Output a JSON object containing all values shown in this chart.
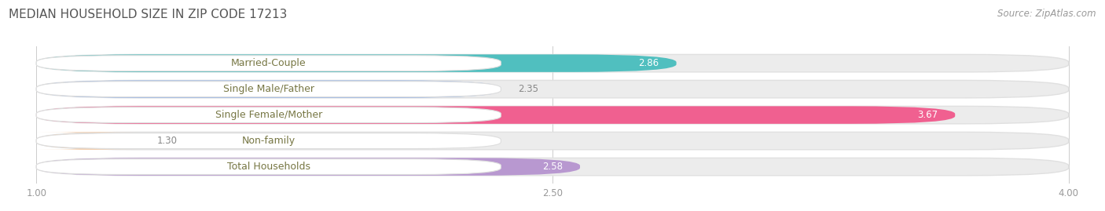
{
  "title": "MEDIAN HOUSEHOLD SIZE IN ZIP CODE 17213",
  "source": "Source: ZipAtlas.com",
  "categories": [
    "Married-Couple",
    "Single Male/Father",
    "Single Female/Mother",
    "Non-family",
    "Total Households"
  ],
  "values": [
    2.86,
    2.35,
    3.67,
    1.3,
    2.58
  ],
  "bar_colors": [
    "#50BFBF",
    "#9BB8E8",
    "#F06090",
    "#F5C8A0",
    "#B898D0"
  ],
  "bar_bg_color": "#ECECEC",
  "xlim_min": 1.0,
  "xlim_max": 4.0,
  "xticks": [
    1.0,
    2.5,
    4.0
  ],
  "xtick_labels": [
    "1.00",
    "2.50",
    "4.00"
  ],
  "title_color": "#555555",
  "label_color": "#777744",
  "value_color_white": "#ffffff",
  "value_color_dark": "#888888",
  "source_color": "#999999",
  "title_fontsize": 11,
  "label_fontsize": 9,
  "value_fontsize": 8.5,
  "tick_fontsize": 8.5,
  "source_fontsize": 8.5,
  "bar_height": 0.68,
  "background_color": "#ffffff",
  "pill_bg": "#ffffff",
  "grid_color": "#CCCCCC"
}
